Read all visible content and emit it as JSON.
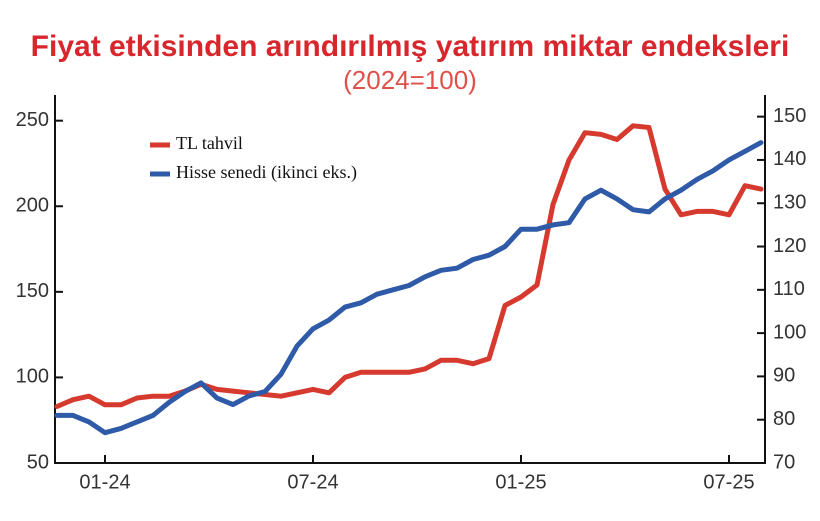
{
  "chart_data": {
    "type": "line",
    "title": "Fiyat etkisinden arındırılmış yatırım miktar endeksleri",
    "subtitle": "(2024=100)",
    "categories": [
      null,
      null,
      null,
      "01-24",
      null,
      null,
      null,
      null,
      null,
      null,
      null,
      null,
      null,
      null,
      null,
      null,
      "07-24",
      null,
      null,
      null,
      null,
      null,
      null,
      null,
      null,
      null,
      null,
      null,
      null,
      "01-25",
      null,
      null,
      null,
      null,
      null,
      null,
      null,
      null,
      null,
      null,
      null,
      null,
      "07-25",
      null,
      null
    ],
    "series": [
      {
        "name": "TL tahvil",
        "color": "#d63a2f",
        "axis": "y",
        "values": [
          83,
          87,
          89,
          84,
          84,
          88,
          89,
          89,
          92,
          96,
          93,
          92,
          91,
          90,
          89,
          91,
          93,
          91,
          100,
          103,
          103,
          103,
          103,
          105,
          110,
          110,
          108,
          111,
          142,
          147,
          154,
          201,
          227,
          243,
          242,
          239,
          247,
          246,
          210,
          195,
          197,
          197,
          195,
          212,
          210
        ]
      },
      {
        "name": "Hisse senedi (ikinci eks.)",
        "color": "#2f5aa8",
        "axis": "y2",
        "values": [
          81,
          81,
          79.5,
          77,
          78,
          79.5,
          81,
          84,
          86.5,
          88.5,
          85,
          83.5,
          85.5,
          86.5,
          90.5,
          97,
          101,
          103,
          106,
          107,
          109,
          110,
          111,
          113,
          114.5,
          115,
          117,
          118,
          120,
          124,
          124,
          125,
          125.5,
          131,
          133,
          131,
          128.5,
          128,
          131,
          133,
          135.5,
          137.5,
          140,
          142,
          144
        ]
      }
    ],
    "ylim": [
      50,
      265
    ],
    "yticks": [
      50,
      100,
      150,
      200,
      250
    ],
    "y2lim": [
      70,
      155
    ],
    "y2ticks": [
      70,
      80,
      90,
      100,
      110,
      120,
      130,
      140,
      150
    ],
    "legend": "top-left"
  }
}
